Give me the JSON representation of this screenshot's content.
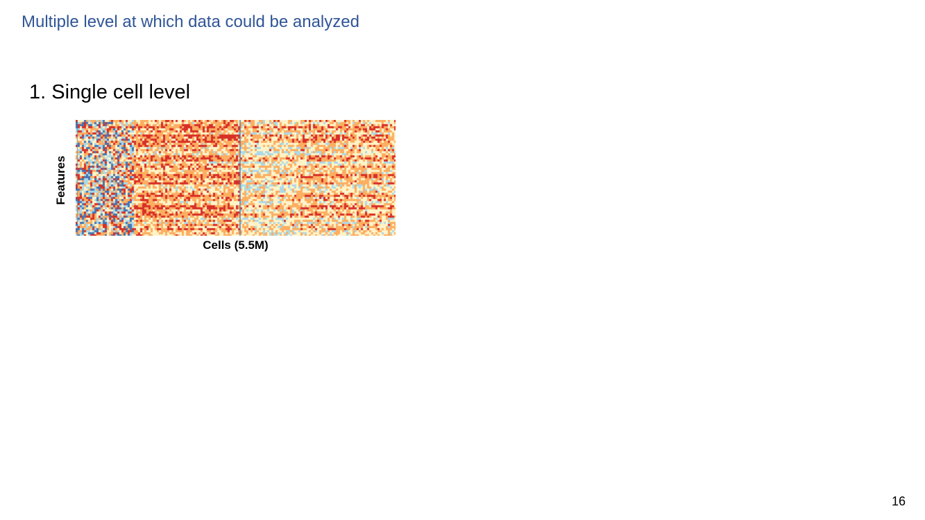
{
  "slide": {
    "title": "Multiple level at which data could be analyzed",
    "section_heading": "1. Single cell level",
    "page_number": "16"
  },
  "figure": {
    "type": "heatmap",
    "y_label": "Features",
    "x_label": "Cells (5.5M)",
    "colors": {
      "low": "#4575b4",
      "mid_low": "#abd9e9",
      "mid": "#fff4c8",
      "mid_high": "#fdae61",
      "high": "#d73027"
    }
  }
}
